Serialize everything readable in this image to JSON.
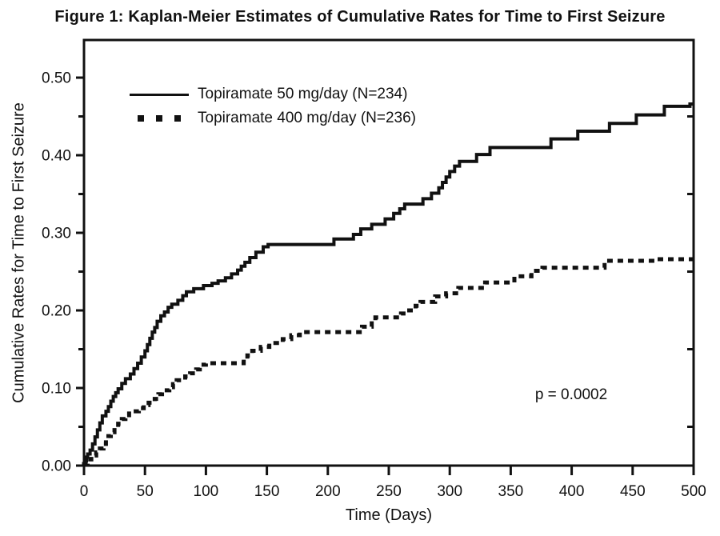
{
  "figure": {
    "title": "Figure 1: Kaplan-Meier Estimates of Cumulative Rates for Time to First Seizure"
  },
  "chart_data": {
    "type": "line",
    "subtype": "kaplan_meier_step",
    "title": "Figure 1: Kaplan-Meier Estimates of Cumulative Rates for Time to First Seizure",
    "xlabel": "Time (Days)",
    "ylabel": "Cumulative Rates for Time to First Seizure",
    "xlim": [
      0,
      500
    ],
    "ylim": [
      0,
      0.5485
    ],
    "x_ticks": [
      0,
      50,
      100,
      150,
      200,
      250,
      300,
      350,
      400,
      450,
      500
    ],
    "y_ticks_major": [
      0.0,
      0.1,
      0.2,
      0.3,
      0.4,
      0.5
    ],
    "y_ticks_minor": [
      0.05,
      0.15,
      0.25,
      0.35,
      0.45
    ],
    "right_axis_ticks": [
      0.05,
      0.15,
      0.25,
      0.35,
      0.45
    ],
    "y_tick_decimals": 2,
    "grid": false,
    "legend_position": "upper-left-inside",
    "line_color": "#111111",
    "annotation": {
      "text": "p = 0.0002",
      "x_days": 400,
      "y_rate": 0.09
    },
    "series": [
      {
        "name": "Topiramate 50 mg/day (N=234)",
        "style": "solid",
        "points": [
          [
            0,
            0.002
          ],
          [
            1,
            0.006
          ],
          [
            2,
            0.011
          ],
          [
            3,
            0.015
          ],
          [
            5,
            0.02
          ],
          [
            7,
            0.028
          ],
          [
            9,
            0.037
          ],
          [
            11,
            0.046
          ],
          [
            13,
            0.055
          ],
          [
            15,
            0.064
          ],
          [
            18,
            0.07
          ],
          [
            20,
            0.076
          ],
          [
            22,
            0.083
          ],
          [
            24,
            0.089
          ],
          [
            26,
            0.094
          ],
          [
            28,
            0.099
          ],
          [
            31,
            0.106
          ],
          [
            34,
            0.112
          ],
          [
            38,
            0.118
          ],
          [
            41,
            0.125
          ],
          [
            44,
            0.132
          ],
          [
            47,
            0.14
          ],
          [
            50,
            0.148
          ],
          [
            52,
            0.156
          ],
          [
            54,
            0.164
          ],
          [
            56,
            0.172
          ],
          [
            58,
            0.178
          ],
          [
            60,
            0.186
          ],
          [
            63,
            0.193
          ],
          [
            66,
            0.198
          ],
          [
            69,
            0.204
          ],
          [
            72,
            0.208
          ],
          [
            77,
            0.213
          ],
          [
            81,
            0.219
          ],
          [
            84,
            0.224
          ],
          [
            90,
            0.228
          ],
          [
            98,
            0.232
          ],
          [
            105,
            0.235
          ],
          [
            110,
            0.238
          ],
          [
            116,
            0.242
          ],
          [
            121,
            0.247
          ],
          [
            126,
            0.252
          ],
          [
            129,
            0.257
          ],
          [
            132,
            0.262
          ],
          [
            136,
            0.268
          ],
          [
            141,
            0.275
          ],
          [
            147,
            0.282
          ],
          [
            151,
            0.285
          ],
          [
            205,
            0.292
          ],
          [
            221,
            0.298
          ],
          [
            227,
            0.305
          ],
          [
            236,
            0.311
          ],
          [
            247,
            0.318
          ],
          [
            254,
            0.325
          ],
          [
            259,
            0.331
          ],
          [
            263,
            0.337
          ],
          [
            278,
            0.344
          ],
          [
            285,
            0.351
          ],
          [
            291,
            0.358
          ],
          [
            294,
            0.365
          ],
          [
            297,
            0.372
          ],
          [
            300,
            0.379
          ],
          [
            304,
            0.386
          ],
          [
            308,
            0.392
          ],
          [
            322,
            0.401
          ],
          [
            333,
            0.41
          ],
          [
            383,
            0.421
          ],
          [
            405,
            0.431
          ],
          [
            431,
            0.441
          ],
          [
            453,
            0.452
          ],
          [
            476,
            0.463
          ],
          [
            497,
            0.466
          ],
          [
            500,
            0.466
          ]
        ]
      },
      {
        "name": "Topiramate 400 mg/day (N=236)",
        "style": "dotted",
        "points": [
          [
            0,
            0.002
          ],
          [
            3,
            0.008
          ],
          [
            6,
            0.013
          ],
          [
            10,
            0.017
          ],
          [
            13,
            0.022
          ],
          [
            16,
            0.028
          ],
          [
            18,
            0.033
          ],
          [
            20,
            0.038
          ],
          [
            22,
            0.043
          ],
          [
            25,
            0.049
          ],
          [
            28,
            0.054
          ],
          [
            31,
            0.06
          ],
          [
            34,
            0.065
          ],
          [
            37,
            0.07
          ],
          [
            45,
            0.074
          ],
          [
            49,
            0.078
          ],
          [
            53,
            0.081
          ],
          [
            58,
            0.086
          ],
          [
            61,
            0.092
          ],
          [
            64,
            0.097
          ],
          [
            70,
            0.101
          ],
          [
            73,
            0.105
          ],
          [
            76,
            0.11
          ],
          [
            83,
            0.115
          ],
          [
            87,
            0.119
          ],
          [
            92,
            0.124
          ],
          [
            95,
            0.13
          ],
          [
            100,
            0.132
          ],
          [
            131,
            0.137
          ],
          [
            134,
            0.142
          ],
          [
            138,
            0.148
          ],
          [
            145,
            0.153
          ],
          [
            152,
            0.158
          ],
          [
            163,
            0.163
          ],
          [
            170,
            0.168
          ],
          [
            177,
            0.172
          ],
          [
            228,
            0.179
          ],
          [
            236,
            0.186
          ],
          [
            239,
            0.191
          ],
          [
            260,
            0.196
          ],
          [
            265,
            0.2
          ],
          [
            272,
            0.206
          ],
          [
            276,
            0.211
          ],
          [
            288,
            0.218
          ],
          [
            297,
            0.222
          ],
          [
            307,
            0.229
          ],
          [
            329,
            0.236
          ],
          [
            353,
            0.244
          ],
          [
            367,
            0.251
          ],
          [
            376,
            0.255
          ],
          [
            427,
            0.264
          ],
          [
            470,
            0.266
          ],
          [
            500,
            0.266
          ]
        ]
      }
    ]
  }
}
